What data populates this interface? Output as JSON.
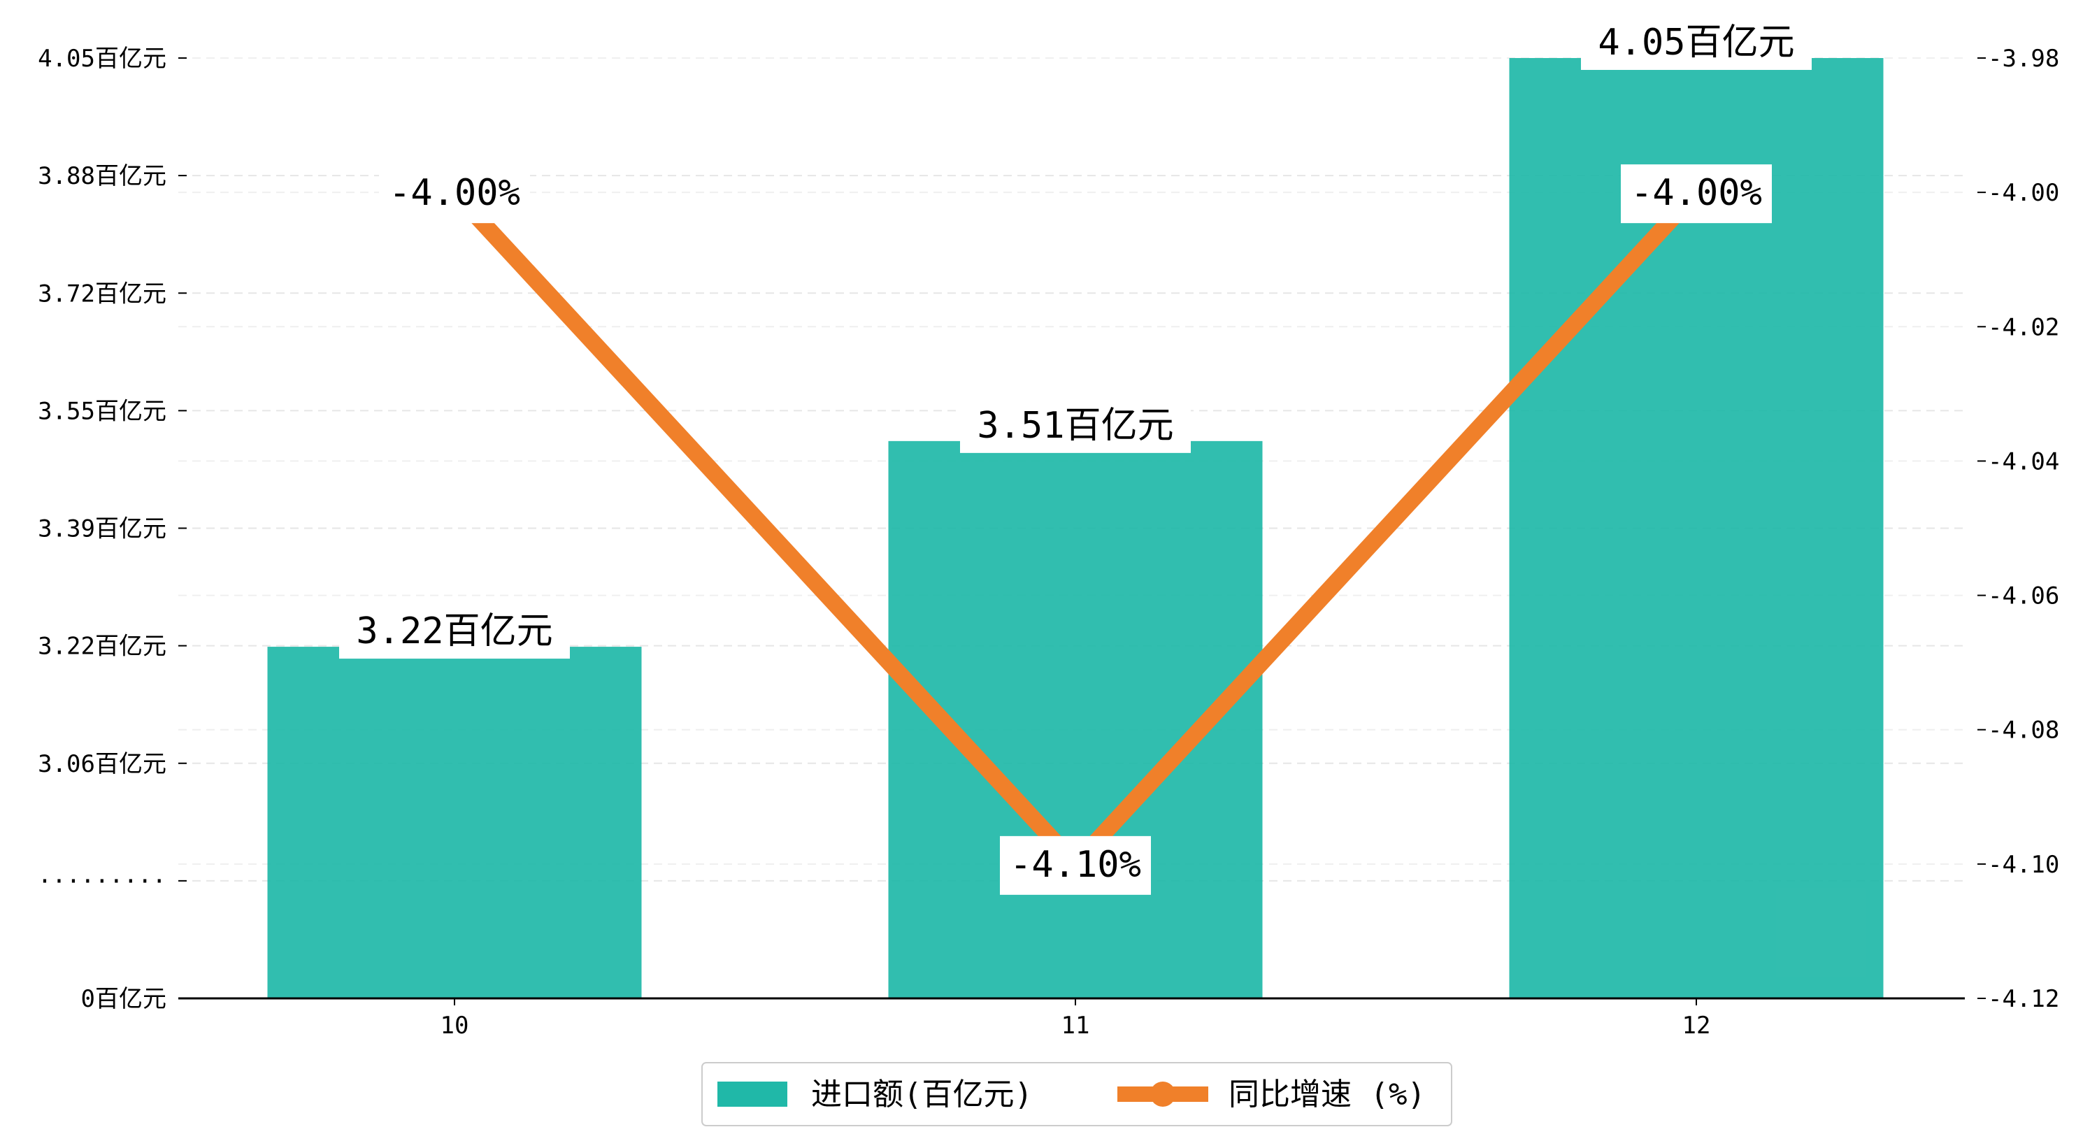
{
  "chart_data": {
    "type": "bar",
    "categories": [
      "10",
      "11",
      "12"
    ],
    "series": [
      {
        "name": "进口额(百亿元)",
        "kind": "bar",
        "axis": "left",
        "color": "#20b8a8",
        "values": [
          3.22,
          3.51,
          4.05
        ],
        "labels": [
          "3.22百亿元",
          "3.51百亿元",
          "4.05百亿元"
        ]
      },
      {
        "name": "同比增速 (%)",
        "kind": "line",
        "axis": "right",
        "color": "#f0802a",
        "values": [
          -4.0,
          -4.1,
          -4.0
        ],
        "labels": [
          "-4.00%",
          "-4.10%",
          "-4.00%"
        ]
      }
    ],
    "left_axis": {
      "ticks": [
        "0百亿元",
        "·········",
        "3.06百亿元",
        "3.22百亿元",
        "3.39百亿元",
        "3.55百亿元",
        "3.72百亿元",
        "3.88百亿元",
        "4.05百亿元"
      ],
      "broken": true,
      "ylim": [
        2.89,
        4.05
      ]
    },
    "right_axis": {
      "ticks": [
        "-4.12",
        "-4.10",
        "-4.08",
        "-4.06",
        "-4.04",
        "-4.02",
        "-4.00",
        "-3.98"
      ],
      "ylim": [
        -4.12,
        -3.98
      ]
    },
    "grid": "horizontal dashed",
    "legend": "bottom-center"
  }
}
